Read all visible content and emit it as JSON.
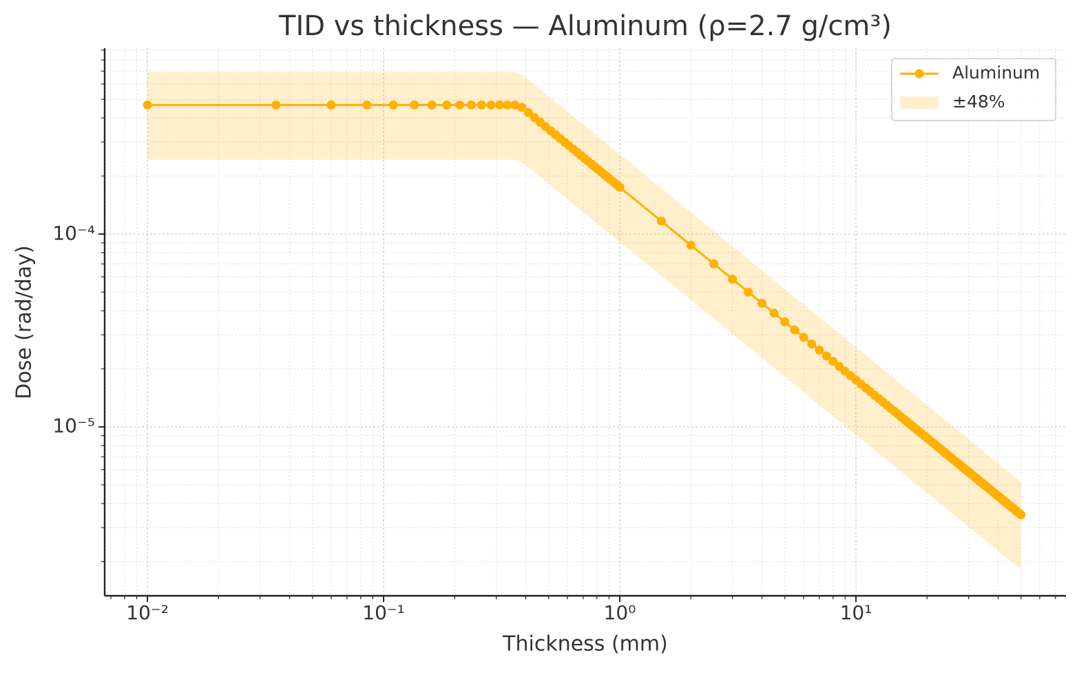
{
  "chart_data": {
    "type": "line",
    "title": "TID vs thickness — Aluminum (ρ=2.7 g/cm³)",
    "x_label": "Thickness (mm)",
    "y_label": "Dose (rad/day)",
    "x_scale": "log",
    "y_scale": "log",
    "grid": true,
    "legend": "upper right",
    "xlim": [
      0.00659,
      77.5
    ],
    "ylim": [
      1.33e-06,
      0.00092
    ],
    "xticks": [
      {
        "value": 0.01,
        "label": "10⁻²"
      },
      {
        "value": 0.1,
        "label": "10⁻¹"
      },
      {
        "value": 1,
        "label": "10⁰"
      },
      {
        "value": 10,
        "label": "10¹"
      }
    ],
    "yticks": [
      {
        "value": 1e-05,
        "label": "10⁻⁵"
      },
      {
        "value": 0.0001,
        "label": "10⁻⁴"
      }
    ],
    "xminorticks": [
      0.007,
      0.008,
      0.009,
      0.02,
      0.03,
      0.04,
      0.05,
      0.06,
      0.07,
      0.08,
      0.09,
      0.2,
      0.3,
      0.4,
      0.5,
      0.6,
      0.7,
      0.8,
      0.9,
      2,
      3,
      4,
      5,
      6,
      7,
      8,
      9,
      20,
      30,
      40,
      50,
      60,
      70
    ],
    "yminorticks": [
      2e-06,
      3e-06,
      4e-06,
      5e-06,
      6e-06,
      7e-06,
      8e-06,
      9e-06,
      2e-05,
      3e-05,
      4e-05,
      5e-05,
      6e-05,
      7e-05,
      8e-05,
      9e-05,
      0.0002,
      0.0003,
      0.0004,
      0.0005,
      0.0006,
      0.0007,
      0.0008,
      0.0009
    ],
    "x": [
      0.01,
      0.035,
      0.06,
      0.085,
      0.11,
      0.135,
      0.16,
      0.185,
      0.21,
      0.235,
      0.26,
      0.285,
      0.31,
      0.335,
      0.36,
      0.385,
      0.41,
      0.435,
      0.46,
      0.485,
      0.51,
      0.535,
      0.56,
      0.585,
      0.61,
      0.635,
      0.66,
      0.685,
      0.71,
      0.735,
      0.76,
      0.785,
      0.81,
      0.835,
      0.86,
      0.885,
      0.91,
      0.935,
      0.96,
      0.985,
      1.0,
      1.5,
      2,
      2.5,
      3,
      3.5,
      4,
      4.5,
      5,
      5.5,
      6,
      6.5,
      7,
      7.5,
      8,
      8.5,
      9,
      9.5,
      10,
      10.5,
      11,
      11.5,
      12,
      12.5,
      13,
      13.5,
      14,
      14.5,
      15,
      15.5,
      16,
      16.5,
      17,
      17.5,
      18,
      18.5,
      19,
      19.5,
      20,
      20.5,
      21,
      21.5,
      22,
      22.5,
      23,
      23.5,
      24,
      24.5,
      25,
      25.5,
      26,
      26.5,
      27,
      27.5,
      28,
      28.5,
      29,
      29.5,
      30,
      30.5,
      31,
      31.5,
      32,
      32.5,
      33,
      33.5,
      34,
      34.5,
      35,
      35.5,
      36,
      36.5,
      37,
      37.5,
      38,
      38.5,
      39,
      39.5,
      40,
      40.5,
      41,
      41.5,
      42,
      42.5,
      43,
      43.5,
      44,
      44.5,
      45,
      45.5,
      46,
      46.5,
      47,
      47.5,
      48,
      48.5,
      49,
      49.5,
      50
    ],
    "series": [
      {
        "name": "Aluminum",
        "color": "#ffb000",
        "values": [
          0.000467,
          0.000467,
          0.000467,
          0.000467,
          0.000467,
          0.000467,
          0.000467,
          0.000467,
          0.000467,
          0.000467,
          0.000467,
          0.000467,
          0.000467,
          0.000467,
          0.000467,
          0.0004545,
          0.0004268,
          0.0004023,
          0.0003804,
          0.0003608,
          0.0003431,
          0.0003271,
          0.0003125,
          0.0002991,
          0.0002869,
          0.0002756,
          0.0002652,
          0.0002555,
          0.0002465,
          0.0002381,
          0.0002303,
          0.0002229,
          0.000216,
          0.0002096,
          0.0002035,
          0.0001977,
          0.0001923,
          0.0001872,
          0.0001823,
          0.0001777,
          0.000175,
          0.00011667,
          8.75e-05,
          7e-05,
          5.833e-05,
          5e-05,
          4.375e-05,
          3.889e-05,
          3.5e-05,
          3.182e-05,
          2.917e-05,
          2.692e-05,
          2.5e-05,
          2.333e-05,
          2.1875e-05,
          2.059e-05,
          1.944e-05,
          1.842e-05,
          1.75e-05,
          1.667e-05,
          1.591e-05,
          1.522e-05,
          1.458e-05,
          1.4e-05,
          1.346e-05,
          1.296e-05,
          1.25e-05,
          1.207e-05,
          1.167e-05,
          1.129e-05,
          1.094e-05,
          1.061e-05,
          1.029e-05,
          1e-05,
          9.722e-06,
          9.459e-06,
          9.211e-06,
          8.974e-06,
          8.75e-06,
          8.537e-06,
          8.333e-06,
          8.14e-06,
          7.955e-06,
          7.778e-06,
          7.609e-06,
          7.447e-06,
          7.292e-06,
          7.143e-06,
          7e-06,
          6.863e-06,
          6.731e-06,
          6.604e-06,
          6.481e-06,
          6.364e-06,
          6.25e-06,
          6.14e-06,
          6.034e-06,
          5.932e-06,
          5.833e-06,
          5.738e-06,
          5.645e-06,
          5.556e-06,
          5.469e-06,
          5.385e-06,
          5.303e-06,
          5.224e-06,
          5.147e-06,
          5.072e-06,
          5e-06,
          4.93e-06,
          4.861e-06,
          4.795e-06,
          4.73e-06,
          4.667e-06,
          4.605e-06,
          4.545e-06,
          4.487e-06,
          4.43e-06,
          4.375e-06,
          4.321e-06,
          4.268e-06,
          4.217e-06,
          4.167e-06,
          4.118e-06,
          4.07e-06,
          4.023e-06,
          3.977e-06,
          3.933e-06,
          3.889e-06,
          3.846e-06,
          3.804e-06,
          3.763e-06,
          3.723e-06,
          3.684e-06,
          3.646e-06,
          3.608e-06,
          3.571e-06,
          3.535e-06,
          3.5e-06
        ]
      },
      {
        "name": "±48%",
        "kind": "band",
        "color": "#ffb000",
        "relative_error": 48
      }
    ]
  }
}
